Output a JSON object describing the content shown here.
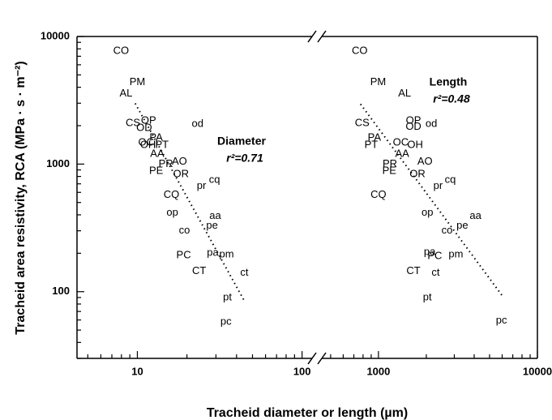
{
  "chart_data": {
    "type": "scatter",
    "xlabel": "Tracheid diameter or length (µm)",
    "ylabel": "Tracheid area resistivity, RCA (MPa · s · m⁻²)",
    "log_x": true,
    "log_y": true,
    "ylim": [
      30,
      10000
    ],
    "yticks": [
      100,
      1000,
      10000
    ],
    "panels": [
      {
        "xlim": [
          4.3,
          115
        ],
        "xticks": [
          10,
          100
        ],
        "annotation": "Diameter",
        "r2": "r²=0.71",
        "trendline": {
          "x": [
            9.7,
            44.2
          ],
          "y": [
            2990,
            86.5
          ]
        },
        "points": {
          "labels": [
            "CO",
            "PM",
            "AL",
            "OP",
            "CS",
            "OD",
            "od",
            "PA",
            "OC",
            "OH",
            "PT",
            "AA",
            "PR",
            "AO",
            "PE",
            "OR",
            "pr",
            "cq",
            "CQ",
            "op",
            "aa",
            "pe",
            "co",
            "PC",
            "pa",
            "pm",
            "CT",
            "ct",
            "pt",
            "pc"
          ],
          "x": [
            7.96,
            10,
            8.53,
            11.7,
            9.4,
            11.0,
            23.2,
            13.0,
            11.3,
            11.6,
            14.1,
            13.2,
            14.9,
            18.0,
            13.0,
            18.4,
            24.5,
            29.4,
            16.1,
            16.3,
            29.7,
            28.4,
            19.3,
            19.1,
            28.7,
            34.8,
            23.7,
            44.6,
            35.2,
            34.5
          ],
          "values": [
            7700,
            4370,
            3570,
            2180,
            2080,
            1910,
            2050,
            1600,
            1470,
            1410,
            1410,
            1200,
            1000,
            1040,
            880,
            830,
            670,
            750,
            570,
            415,
            392,
            329,
            301,
            192,
            201,
            195,
            144,
            140,
            90,
            58
          ]
        }
      },
      {
        "xlim": [
          440,
          10000
        ],
        "xticks": [
          1000,
          10000
        ],
        "annotation": "Length",
        "r2": "r²=0.48",
        "trendline": {
          "x": [
            771,
            6010
          ],
          "y": [
            2950,
            93
          ]
        },
        "points": {
          "labels": [
            "CO",
            "PM",
            "AL",
            "OP",
            "CS",
            "OD",
            "od",
            "PA",
            "OC",
            "PT",
            "OH",
            "AA",
            "PR",
            "AO",
            "PE",
            "OR",
            "pr",
            "cq",
            "CQ",
            "op",
            "aa",
            "pe",
            "co",
            "pa",
            "PC",
            "pm",
            "CT",
            "ct",
            "pt",
            "pc"
          ],
          "x": [
            762,
            995,
            1460,
            1660,
            790,
            1660,
            2150,
            942,
            1380,
            900,
            1700,
            1410,
            1180,
            1960,
            1170,
            1760,
            2370,
            2830,
            1000,
            2030,
            4080,
            3370,
            2700,
            2100,
            2260,
            3070,
            1660,
            2290,
            2030,
            5940
          ],
          "values": [
            7700,
            4370,
            3570,
            2180,
            2080,
            1960,
            2050,
            1600,
            1470,
            1410,
            1410,
            1200,
            1000,
            1040,
            880,
            830,
            670,
            750,
            570,
            415,
            392,
            329,
            301,
            204,
            190,
            195,
            144,
            140,
            90,
            59
          ]
        }
      }
    ]
  }
}
